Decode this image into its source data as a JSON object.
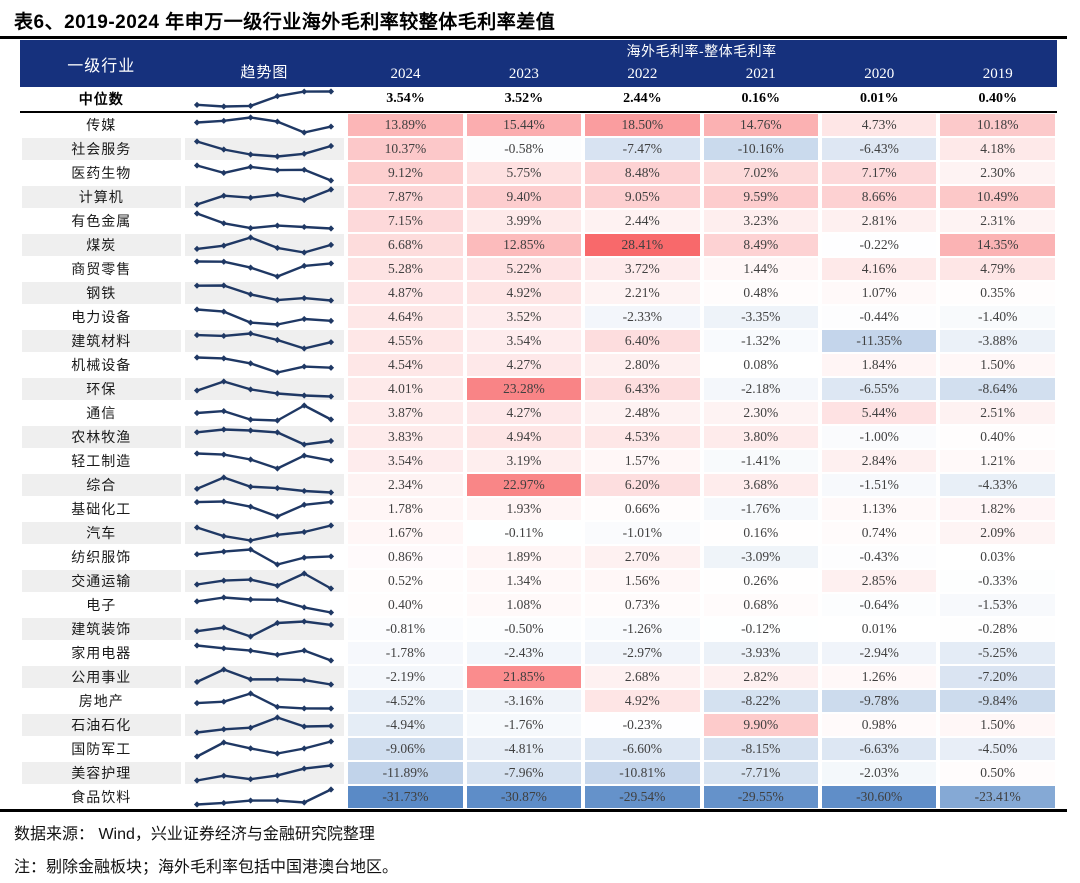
{
  "title": "表6、2019-2024 年申万一级行业海外毛利率较整体毛利率差值",
  "footer": {
    "source": "数据来源：  Wind，兴业证券经济与金融研究院整理",
    "note": "注：剔除金融板块；海外毛利率包括中国港澳台地区。"
  },
  "colors": {
    "header_bg": "#16317D",
    "sparkline": "#1F3864",
    "row_stripe": "#EFEFEF",
    "heat_max_red": "#F8696B",
    "heat_mid_white": "#FFFFFF",
    "heat_min_blue": "#5A8AC6",
    "rule_black": "#000000"
  },
  "chart_data": {
    "type": "heatmap",
    "title": "表6、2019-2024 年申万一级行业海外毛利率较整体毛利率差值",
    "industry_header": "一级行业",
    "trend_header": "趋势图",
    "value_header": "海外毛利率-整体毛利率",
    "columns": [
      "2024",
      "2023",
      "2022",
      "2021",
      "2020",
      "2019"
    ],
    "unit": "%",
    "color_scale": {
      "min": -31.73,
      "mid": 0,
      "max": 28.41,
      "min_color": "#5A8AC6",
      "mid_color": "#FFFFFF",
      "max_color": "#F8696B"
    },
    "median": {
      "label": "中位数",
      "values": [
        3.54,
        3.52,
        2.44,
        0.16,
        0.01,
        0.4
      ],
      "sparkline_reversed": true
    },
    "rows": [
      {
        "name": "传媒",
        "values": [
          13.89,
          15.44,
          18.5,
          14.76,
          4.73,
          10.18
        ]
      },
      {
        "name": "社会服务",
        "values": [
          10.37,
          -0.58,
          -7.47,
          -10.16,
          -6.43,
          4.18
        ]
      },
      {
        "name": "医药生物",
        "values": [
          9.12,
          5.75,
          8.48,
          7.02,
          7.17,
          2.3
        ]
      },
      {
        "name": "计算机",
        "values": [
          7.87,
          9.4,
          9.05,
          9.59,
          8.66,
          10.49
        ]
      },
      {
        "name": "有色金属",
        "values": [
          7.15,
          3.99,
          2.44,
          3.23,
          2.81,
          2.31
        ]
      },
      {
        "name": "煤炭",
        "values": [
          6.68,
          12.85,
          28.41,
          8.49,
          -0.22,
          14.35
        ]
      },
      {
        "name": "商贸零售",
        "values": [
          5.28,
          5.22,
          3.72,
          1.44,
          4.16,
          4.79
        ]
      },
      {
        "name": "钢铁",
        "values": [
          4.87,
          4.92,
          2.21,
          0.48,
          1.07,
          0.35
        ]
      },
      {
        "name": "电力设备",
        "values": [
          4.64,
          3.52,
          -2.33,
          -3.35,
          -0.44,
          -1.4
        ]
      },
      {
        "name": "建筑材料",
        "values": [
          4.55,
          3.54,
          6.4,
          -1.32,
          -11.35,
          -3.88
        ]
      },
      {
        "name": "机械设备",
        "values": [
          4.54,
          4.27,
          2.8,
          0.08,
          1.84,
          1.5
        ]
      },
      {
        "name": "环保",
        "values": [
          4.01,
          23.28,
          6.43,
          -2.18,
          -6.55,
          -8.64
        ]
      },
      {
        "name": "通信",
        "values": [
          3.87,
          4.27,
          2.48,
          2.3,
          5.44,
          2.51
        ]
      },
      {
        "name": "农林牧渔",
        "values": [
          3.83,
          4.94,
          4.53,
          3.8,
          -1.0,
          0.4
        ]
      },
      {
        "name": "轻工制造",
        "values": [
          3.54,
          3.19,
          1.57,
          -1.41,
          2.84,
          1.21
        ]
      },
      {
        "name": "综合",
        "values": [
          2.34,
          22.97,
          6.2,
          3.68,
          -1.51,
          -4.33
        ]
      },
      {
        "name": "基础化工",
        "values": [
          1.78,
          1.93,
          0.66,
          -1.76,
          1.13,
          1.82
        ]
      },
      {
        "name": "汽车",
        "values": [
          1.67,
          -0.11,
          -1.01,
          0.16,
          0.74,
          2.09
        ]
      },
      {
        "name": "纺织服饰",
        "values": [
          0.86,
          1.89,
          2.7,
          -3.09,
          -0.43,
          0.03
        ]
      },
      {
        "name": "交通运输",
        "values": [
          0.52,
          1.34,
          1.56,
          0.26,
          2.85,
          -0.33
        ]
      },
      {
        "name": "电子",
        "values": [
          0.4,
          1.08,
          0.73,
          0.68,
          -0.64,
          -1.53
        ]
      },
      {
        "name": "建筑装饰",
        "values": [
          -0.81,
          -0.5,
          -1.26,
          -0.12,
          0.01,
          -0.28
        ]
      },
      {
        "name": "家用电器",
        "values": [
          -1.78,
          -2.43,
          -2.97,
          -3.93,
          -2.94,
          -5.25
        ]
      },
      {
        "name": "公用事业",
        "values": [
          -2.19,
          21.85,
          2.68,
          2.82,
          1.26,
          -7.2
        ]
      },
      {
        "name": "房地产",
        "values": [
          -4.52,
          -3.16,
          4.92,
          -8.22,
          -9.78,
          -9.84
        ]
      },
      {
        "name": "石油石化",
        "values": [
          -4.94,
          -1.76,
          -0.23,
          9.9,
          0.98,
          1.5
        ]
      },
      {
        "name": "国防军工",
        "values": [
          -9.06,
          -4.81,
          -6.6,
          -8.15,
          -6.63,
          -4.5
        ]
      },
      {
        "name": "美容护理",
        "values": [
          -11.89,
          -7.96,
          -10.81,
          -7.71,
          -2.03,
          0.5
        ]
      },
      {
        "name": "食品饮料",
        "values": [
          -31.73,
          -30.87,
          -29.54,
          -29.55,
          -30.6,
          -23.41
        ]
      }
    ]
  }
}
